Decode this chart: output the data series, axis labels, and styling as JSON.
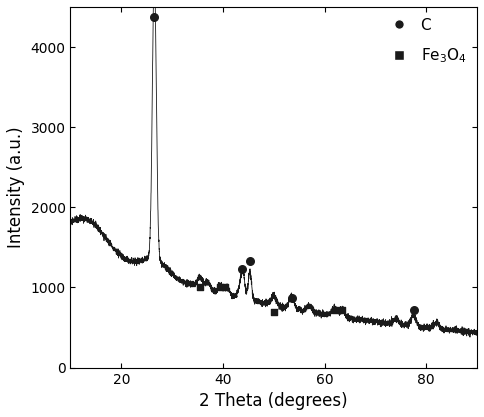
{
  "xlabel": "2 Theta (degrees)",
  "ylabel": "Intensity (a.u.)",
  "xlim": [
    10,
    90
  ],
  "ylim": [
    0,
    4500
  ],
  "yticks": [
    0,
    1000,
    2000,
    3000,
    4000
  ],
  "xticks": [
    20,
    40,
    60,
    80
  ],
  "line_color": "#1a1a1a",
  "background_color": "#ffffff",
  "marker_C": {
    "positions": [
      [
        26.5,
        4380
      ],
      [
        43.8,
        1230
      ],
      [
        45.3,
        1330
      ],
      [
        53.5,
        870
      ],
      [
        77.5,
        720
      ]
    ],
    "color": "#1a1a1a",
    "marker": "o",
    "size": 30
  },
  "marker_Fe3O4": {
    "positions": [
      [
        35.5,
        1010
      ],
      [
        39.5,
        1000
      ],
      [
        40.5,
        1000
      ],
      [
        50.0,
        700
      ],
      [
        62.0,
        720
      ],
      [
        63.5,
        720
      ]
    ],
    "color": "#1a1a1a",
    "marker": "s",
    "size": 25
  },
  "legend": {
    "C_label": "C",
    "Fe3O4_label": "Fe$_3$O$_4$",
    "loc": "upper right",
    "fontsize": 11
  },
  "seed": 10,
  "noise_std": 20
}
